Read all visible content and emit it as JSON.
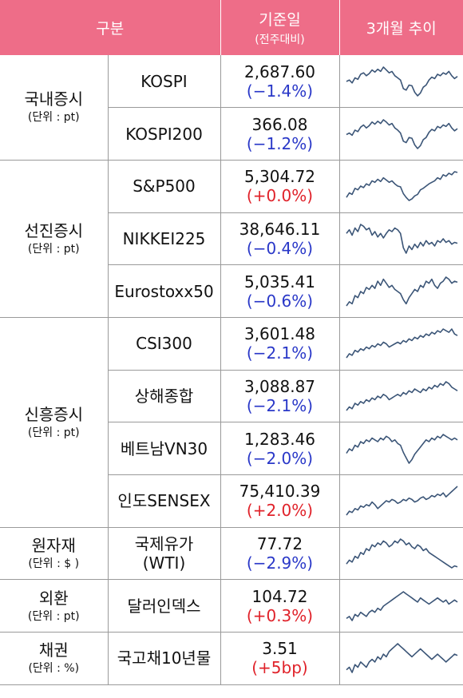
{
  "header": {
    "category": "구분",
    "base_date": "기준일",
    "base_date_sub": "(전주대비)",
    "trend": "3개월 추이"
  },
  "groups": [
    {
      "title": "국내증시",
      "unit": "(단위 : pt)"
    },
    {
      "title": "선진증시",
      "unit": "(단위 : pt)"
    },
    {
      "title": "신흥증시",
      "unit": "(단위 : pt)"
    },
    {
      "title": "원자재",
      "unit": "(단위 : $ )"
    },
    {
      "title": "외환",
      "unit": "(단위 : pt)"
    },
    {
      "title": "채권",
      "unit": "(단위 : %)"
    }
  ],
  "rows": [
    {
      "name": "KOSPI",
      "value": "2,687.60",
      "change": "(−1.4%)",
      "direction": "down",
      "trend": [
        50,
        52,
        48,
        55,
        53,
        60,
        62,
        58,
        61,
        66,
        63,
        67,
        64,
        70,
        66,
        62,
        64,
        58,
        55,
        52,
        40,
        38,
        45,
        44,
        35,
        30,
        34,
        42,
        45,
        52,
        56,
        54,
        60,
        58,
        62,
        60,
        64,
        58,
        54,
        57
      ]
    },
    {
      "name": "KOSPI200",
      "value": "366.08",
      "change": "(−1.2%)",
      "direction": "down",
      "trend": [
        48,
        50,
        47,
        54,
        52,
        58,
        61,
        57,
        60,
        65,
        62,
        66,
        63,
        68,
        65,
        61,
        63,
        57,
        54,
        50,
        39,
        37,
        44,
        43,
        34,
        29,
        33,
        41,
        44,
        51,
        55,
        53,
        59,
        57,
        61,
        59,
        63,
        57,
        53,
        56
      ]
    },
    {
      "name": "S&P500",
      "value": "5,304.72",
      "change": "(+0.0%)",
      "direction": "up",
      "trend": [
        40,
        46,
        44,
        52,
        50,
        55,
        53,
        58,
        56,
        62,
        60,
        64,
        61,
        66,
        63,
        60,
        62,
        58,
        55,
        54,
        45,
        40,
        36,
        38,
        42,
        44,
        50,
        52,
        55,
        58,
        60,
        62,
        66,
        64,
        70,
        68,
        72,
        70,
        74,
        73
      ]
    },
    {
      "name": "NIKKEI225",
      "value": "38,646.11",
      "change": "(−0.4%)",
      "direction": "down",
      "trend": [
        60,
        64,
        58,
        66,
        62,
        70,
        68,
        64,
        66,
        58,
        62,
        56,
        60,
        55,
        60,
        64,
        62,
        66,
        64,
        60,
        44,
        38,
        46,
        42,
        48,
        44,
        50,
        46,
        52,
        48,
        50,
        46,
        52,
        50,
        54,
        50,
        52,
        48,
        50,
        49
      ]
    },
    {
      "name": "Eurostoxx50",
      "value": "5,035.41",
      "change": "(−0.6%)",
      "direction": "down",
      "trend": [
        38,
        42,
        40,
        48,
        46,
        52,
        50,
        56,
        54,
        58,
        55,
        62,
        58,
        64,
        60,
        56,
        58,
        54,
        52,
        50,
        44,
        40,
        46,
        50,
        54,
        52,
        58,
        56,
        62,
        60,
        64,
        58,
        55,
        60,
        62,
        66,
        64,
        60,
        62,
        61
      ]
    },
    {
      "name": "CSI300",
      "value": "3,601.48",
      "change": "(−2.1%)",
      "direction": "down",
      "trend": [
        35,
        40,
        38,
        44,
        42,
        46,
        44,
        48,
        46,
        50,
        48,
        52,
        50,
        54,
        52,
        48,
        50,
        52,
        54,
        52,
        56,
        54,
        58,
        56,
        60,
        58,
        62,
        60,
        64,
        62,
        66,
        64,
        68,
        66,
        70,
        68,
        66,
        70,
        64,
        62
      ]
    },
    {
      "name": "상해종합",
      "value": "3,088.87",
      "change": "(−2.1%)",
      "direction": "down",
      "trend": [
        38,
        42,
        40,
        46,
        44,
        48,
        46,
        50,
        48,
        52,
        50,
        54,
        52,
        56,
        54,
        50,
        52,
        54,
        56,
        54,
        58,
        56,
        60,
        58,
        62,
        60,
        58,
        62,
        60,
        64,
        62,
        66,
        64,
        68,
        66,
        70,
        68,
        64,
        62,
        60
      ]
    },
    {
      "name": "베트남VN30",
      "value": "1,283.46",
      "change": "(−2.0%)",
      "direction": "down",
      "trend": [
        45,
        50,
        48,
        54,
        52,
        58,
        56,
        60,
        58,
        62,
        60,
        58,
        62,
        60,
        64,
        62,
        58,
        60,
        56,
        54,
        46,
        40,
        34,
        38,
        44,
        48,
        52,
        56,
        60,
        58,
        62,
        60,
        64,
        62,
        66,
        64,
        62,
        60,
        62,
        60
      ]
    },
    {
      "name": "인도SENSEX",
      "value": "75,410.39",
      "change": "(+2.0%)",
      "direction": "up",
      "trend": [
        30,
        36,
        34,
        40,
        38,
        44,
        42,
        46,
        44,
        50,
        46,
        40,
        44,
        48,
        52,
        50,
        54,
        52,
        48,
        50,
        54,
        52,
        56,
        54,
        50,
        52,
        56,
        58,
        54,
        56,
        60,
        58,
        62,
        60,
        64,
        58,
        62,
        66,
        70,
        74
      ]
    },
    {
      "name": "국제유가",
      "name2": "(WTI)",
      "value": "77.72",
      "change": "(−2.9%)",
      "direction": "down",
      "trend": [
        40,
        44,
        42,
        48,
        46,
        52,
        50,
        56,
        54,
        60,
        58,
        62,
        60,
        64,
        62,
        58,
        60,
        64,
        62,
        66,
        64,
        60,
        62,
        58,
        56,
        60,
        58,
        54,
        56,
        52,
        50,
        48,
        46,
        44,
        42,
        40,
        38,
        36,
        38,
        37
      ]
    },
    {
      "name": "달러인덱스",
      "value": "104.72",
      "change": "(+0.3%)",
      "direction": "up",
      "trend": [
        42,
        44,
        40,
        46,
        44,
        48,
        46,
        44,
        48,
        50,
        48,
        52,
        50,
        54,
        56,
        58,
        60,
        62,
        64,
        66,
        68,
        66,
        64,
        62,
        60,
        58,
        62,
        60,
        58,
        56,
        58,
        60,
        62,
        60,
        58,
        60,
        56,
        58,
        60,
        58
      ]
    },
    {
      "name": "국고채10년물",
      "value": "3.51",
      "change": "(+5bp)",
      "direction": "up",
      "trend": [
        46,
        48,
        44,
        50,
        48,
        52,
        50,
        48,
        52,
        54,
        52,
        56,
        54,
        58,
        56,
        60,
        62,
        64,
        66,
        64,
        62,
        60,
        58,
        56,
        58,
        60,
        62,
        60,
        58,
        56,
        54,
        56,
        58,
        56,
        54,
        52,
        54,
        56,
        58,
        57
      ]
    }
  ],
  "colors": {
    "header_bg": "#ee6d88",
    "header_text": "#ffffff",
    "negative": "#2a38c8",
    "positive": "#e0222a",
    "sparkline": "#3b5577"
  }
}
